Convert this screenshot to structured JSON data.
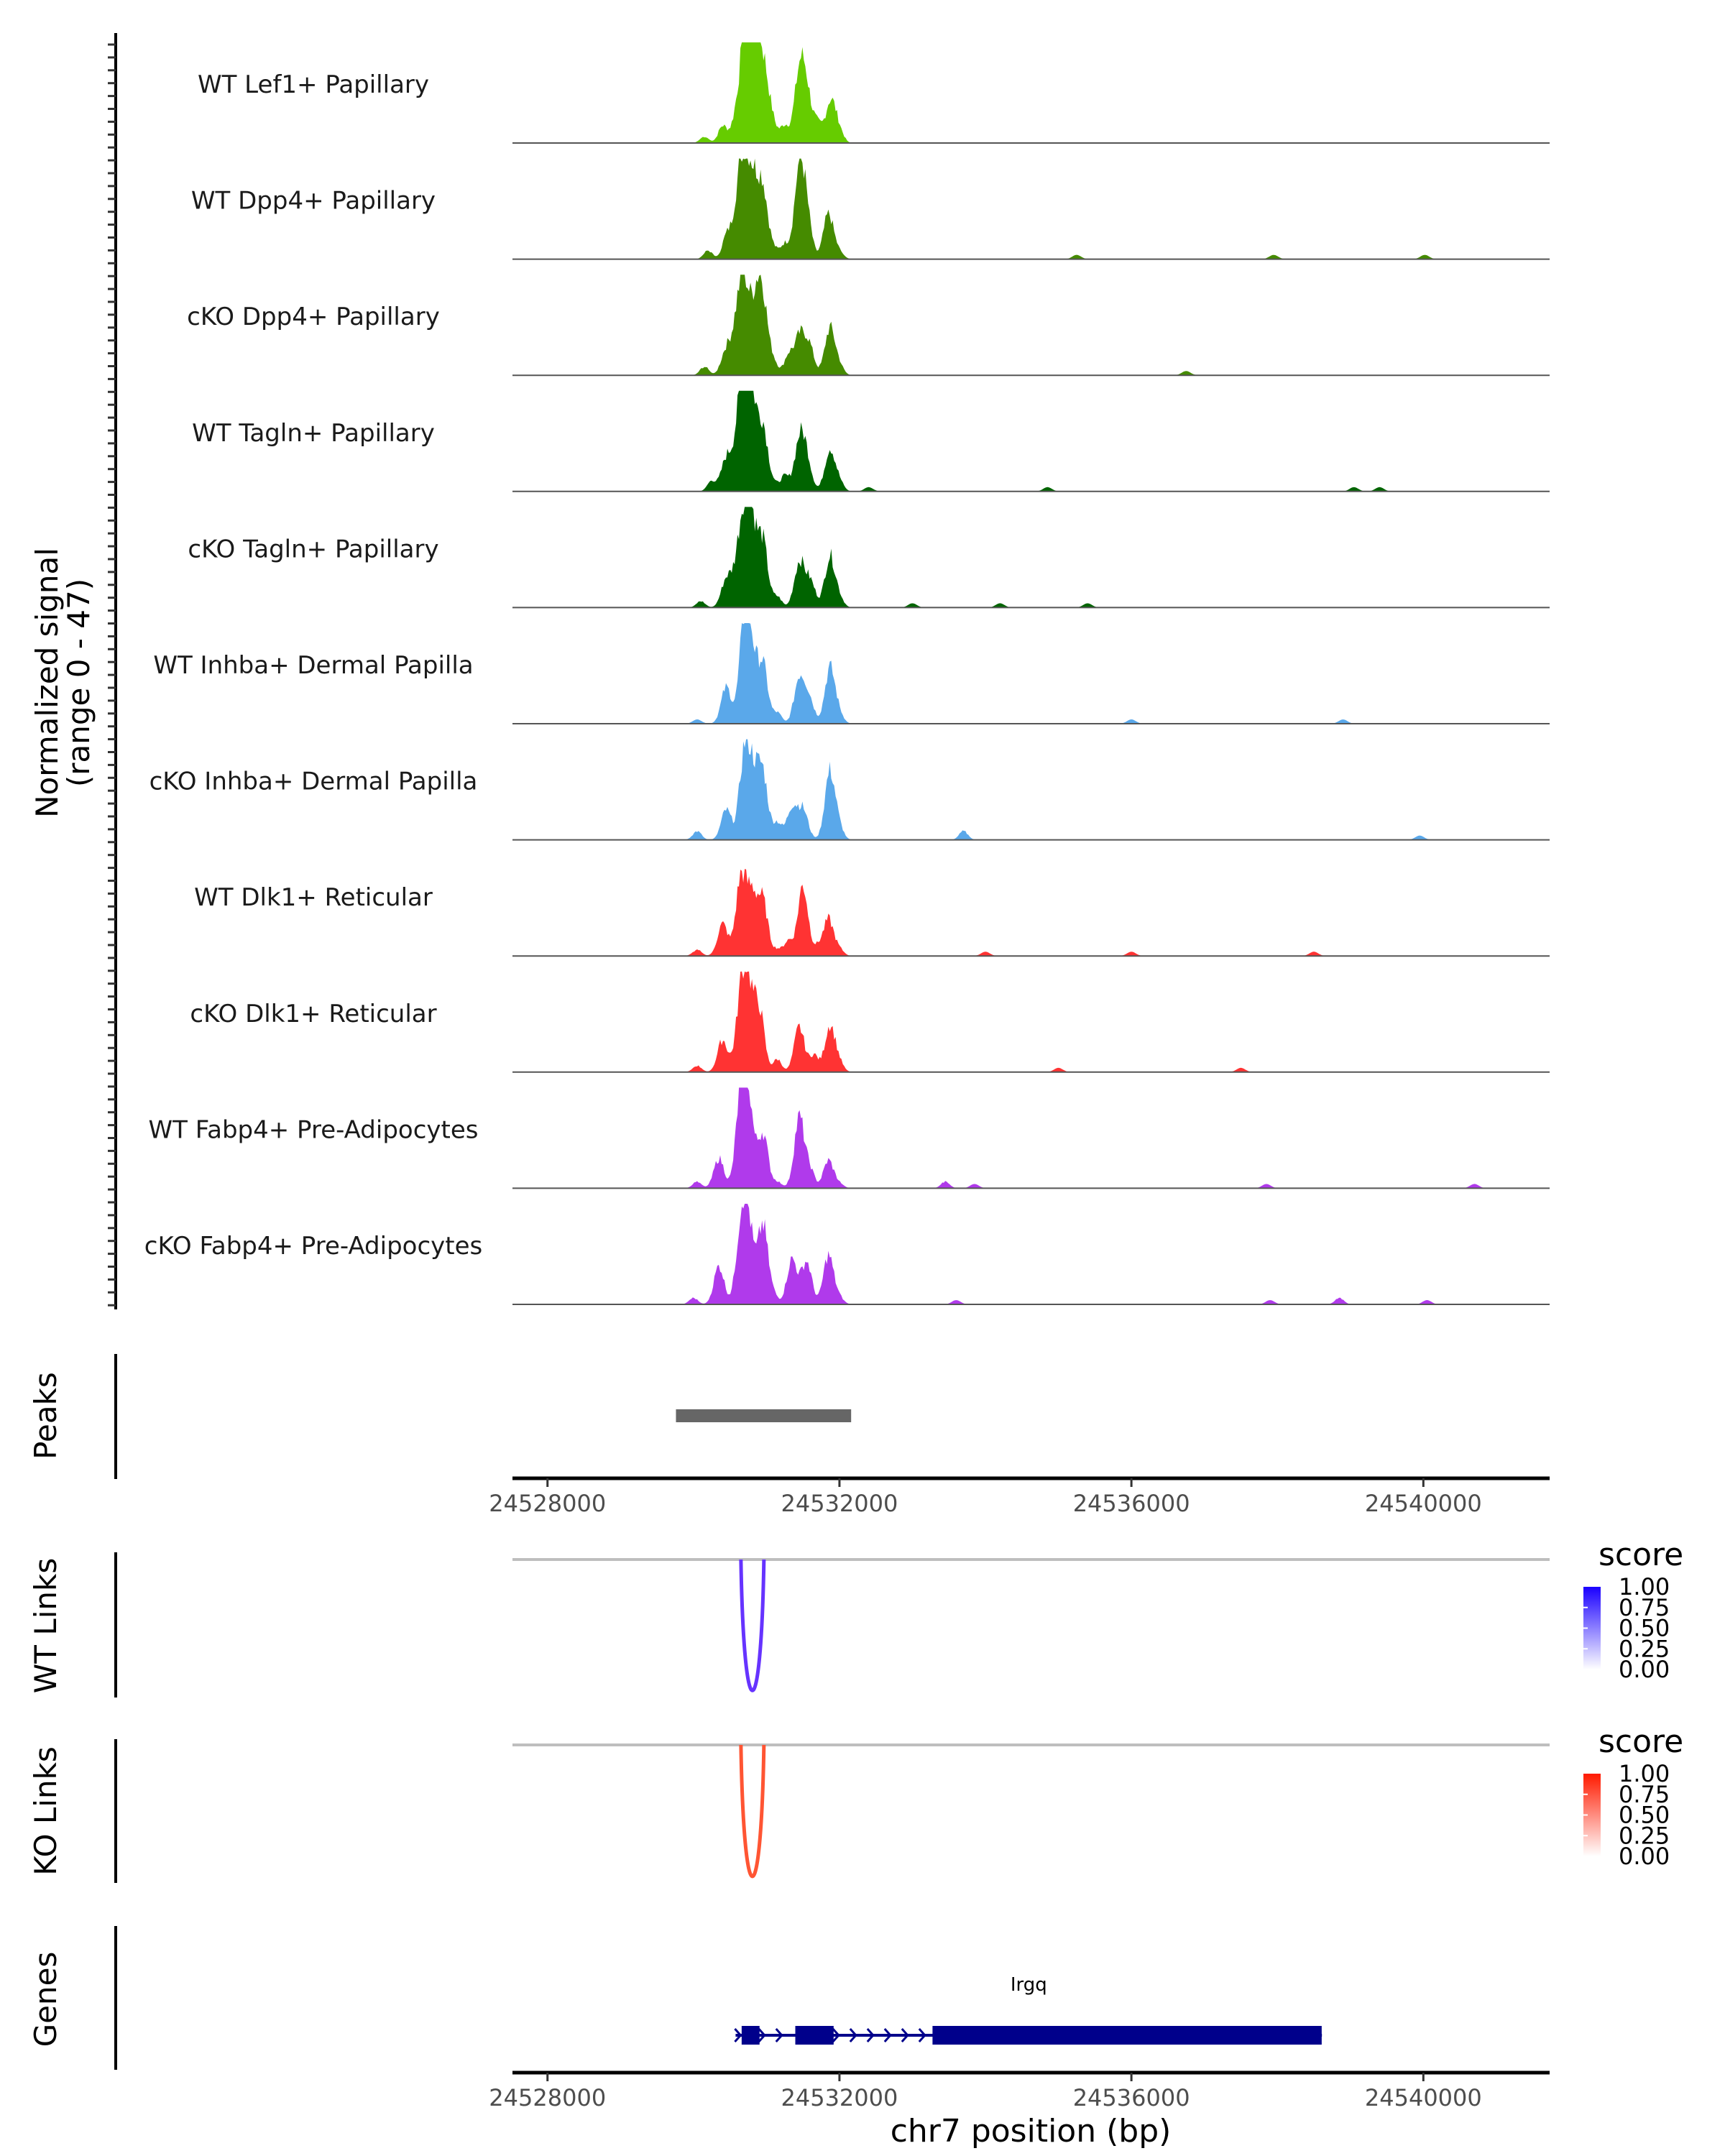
{
  "chart_data": {
    "type": "area",
    "title": "",
    "chromosome": "chr7",
    "xlabel": "chr7 position (bp)",
    "ylabel": "Normalized signal\n(range 0 - 47)",
    "ylabel_lines": [
      "Normalized signal",
      "(range 0 - 47)"
    ],
    "y_range": [
      0,
      47
    ],
    "xlim": [
      24527520,
      24541730
    ],
    "x_ticks": [
      24528000,
      24532000,
      24536000,
      24540000
    ],
    "x_tick_labels": [
      "24528000",
      "24532000",
      "24536000",
      "24540000"
    ],
    "coverage_tracks": [
      {
        "name": "WT Lef1+ Papillary",
        "color": "#66CC00",
        "peaks": [
          [
            24530150,
            3
          ],
          [
            24530400,
            8
          ],
          [
            24530600,
            14
          ],
          [
            24530720,
            44
          ],
          [
            24530800,
            45
          ],
          [
            24530880,
            25
          ],
          [
            24530980,
            27
          ],
          [
            24531100,
            6
          ],
          [
            24531250,
            8
          ],
          [
            24531450,
            30
          ],
          [
            24531550,
            22
          ],
          [
            24531700,
            8
          ],
          [
            24531880,
            20
          ],
          [
            24532000,
            5
          ]
        ]
      },
      {
        "name": "WT Dpp4+ Papillary",
        "color": "#458B00",
        "peaks": [
          [
            24530200,
            4
          ],
          [
            24530450,
            10
          ],
          [
            24530600,
            22
          ],
          [
            24530700,
            39
          ],
          [
            24530820,
            30
          ],
          [
            24530950,
            32
          ],
          [
            24531100,
            4
          ],
          [
            24531250,
            7
          ],
          [
            24531450,
            40
          ],
          [
            24531550,
            18
          ],
          [
            24531850,
            21
          ],
          [
            24532000,
            3
          ],
          [
            24535250,
            2
          ],
          [
            24537950,
            2
          ],
          [
            24540020,
            2
          ]
        ]
      },
      {
        "name": "cKO Dpp4+ Papillary",
        "color": "#458B00",
        "peaks": [
          [
            24530150,
            4
          ],
          [
            24530450,
            12
          ],
          [
            24530600,
            22
          ],
          [
            24530700,
            37
          ],
          [
            24530850,
            28
          ],
          [
            24530950,
            33
          ],
          [
            24531100,
            6
          ],
          [
            24531300,
            9
          ],
          [
            24531450,
            17
          ],
          [
            24531580,
            14
          ],
          [
            24531870,
            22
          ],
          [
            24532000,
            4
          ],
          [
            24536750,
            2
          ]
        ]
      },
      {
        "name": "WT Tagln+ Papillary",
        "color": "#006400",
        "peaks": [
          [
            24530250,
            5
          ],
          [
            24530450,
            15
          ],
          [
            24530600,
            20
          ],
          [
            24530700,
            45
          ],
          [
            24530800,
            35
          ],
          [
            24530950,
            30
          ],
          [
            24531100,
            3
          ],
          [
            24531250,
            7
          ],
          [
            24531450,
            22
          ],
          [
            24531550,
            14
          ],
          [
            24531870,
            20
          ],
          [
            24532000,
            4
          ],
          [
            24532400,
            2
          ],
          [
            24534850,
            2
          ],
          [
            24539050,
            2
          ],
          [
            24539400,
            2
          ]
        ]
      },
      {
        "name": "cKO Tagln+ Papillary",
        "color": "#006400",
        "peaks": [
          [
            24530100,
            3
          ],
          [
            24530450,
            13
          ],
          [
            24530600,
            16
          ],
          [
            24530700,
            36
          ],
          [
            24530800,
            33
          ],
          [
            24530950,
            30
          ],
          [
            24531150,
            5
          ],
          [
            24531450,
            21
          ],
          [
            24531600,
            12
          ],
          [
            24531870,
            24
          ],
          [
            24532000,
            4
          ],
          [
            24533000,
            2
          ],
          [
            24534200,
            2
          ],
          [
            24535400,
            2
          ]
        ]
      },
      {
        "name": "WT Inhba+ Dermal Papilla",
        "color": "#5AA8EA",
        "peaks": [
          [
            24530050,
            2
          ],
          [
            24530450,
            17
          ],
          [
            24530700,
            46
          ],
          [
            24530800,
            25
          ],
          [
            24530950,
            27
          ],
          [
            24531150,
            5
          ],
          [
            24531450,
            21
          ],
          [
            24531580,
            12
          ],
          [
            24531870,
            26
          ],
          [
            24532000,
            4
          ],
          [
            24536000,
            2
          ],
          [
            24538900,
            2
          ]
        ]
      },
      {
        "name": "cKO Inhba+ Dermal Papilla",
        "color": "#5AA8EA",
        "peaks": [
          [
            24530050,
            4
          ],
          [
            24530450,
            14
          ],
          [
            24530700,
            40
          ],
          [
            24530820,
            25
          ],
          [
            24530950,
            30
          ],
          [
            24531150,
            8
          ],
          [
            24531350,
            15
          ],
          [
            24531500,
            14
          ],
          [
            24531870,
            32
          ],
          [
            24532000,
            5
          ],
          [
            24533700,
            4
          ],
          [
            24539950,
            2
          ]
        ]
      },
      {
        "name": "WT Dlk1+ Reticular",
        "color": "#FF3333",
        "peaks": [
          [
            24530050,
            3
          ],
          [
            24530400,
            15
          ],
          [
            24530650,
            36
          ],
          [
            24530800,
            27
          ],
          [
            24530950,
            25
          ],
          [
            24531150,
            3
          ],
          [
            24531300,
            7
          ],
          [
            24531500,
            33
          ],
          [
            24531700,
            4
          ],
          [
            24531850,
            17
          ],
          [
            24532000,
            3
          ],
          [
            24534000,
            2
          ],
          [
            24536000,
            2
          ],
          [
            24538500,
            2
          ]
        ]
      },
      {
        "name": "cKO Dlk1+ Reticular",
        "color": "#FF3333",
        "peaks": [
          [
            24530050,
            3
          ],
          [
            24530400,
            15
          ],
          [
            24530650,
            32
          ],
          [
            24530750,
            35
          ],
          [
            24530900,
            29
          ],
          [
            24531150,
            6
          ],
          [
            24531450,
            21
          ],
          [
            24531650,
            8
          ],
          [
            24531870,
            22
          ],
          [
            24532000,
            4
          ],
          [
            24535000,
            2
          ],
          [
            24537500,
            2
          ]
        ]
      },
      {
        "name": "WT Fabp4+ Pre-Adipocytes",
        "color": "#B03AEB",
        "peaks": [
          [
            24530050,
            3
          ],
          [
            24530350,
            14
          ],
          [
            24530650,
            41
          ],
          [
            24530750,
            38
          ],
          [
            24530950,
            26
          ],
          [
            24531150,
            3
          ],
          [
            24531450,
            33
          ],
          [
            24531600,
            8
          ],
          [
            24531850,
            13
          ],
          [
            24532000,
            2
          ],
          [
            24533450,
            3
          ],
          [
            24533850,
            2
          ],
          [
            24537850,
            2
          ],
          [
            24540700,
            2
          ]
        ]
      },
      {
        "name": "cKO Fabp4+ Pre-Adipocytes",
        "color": "#B03AEB",
        "peaks": [
          [
            24530000,
            3
          ],
          [
            24530350,
            18
          ],
          [
            24530650,
            33
          ],
          [
            24530750,
            35
          ],
          [
            24530950,
            37
          ],
          [
            24531100,
            4
          ],
          [
            24531350,
            21
          ],
          [
            24531550,
            20
          ],
          [
            24531850,
            23
          ],
          [
            24532000,
            3
          ],
          [
            24533600,
            2
          ],
          [
            24537900,
            2
          ],
          [
            24538850,
            3
          ],
          [
            24540050,
            2
          ]
        ]
      }
    ],
    "peaks_track": {
      "label": "Peaks",
      "regions": [
        [
          24529760,
          24532160
        ]
      ],
      "color": "#666666"
    },
    "link_tracks": [
      {
        "label": "WT Links",
        "links": [
          {
            "start": 24530650,
            "end": 24530965,
            "score": 0.8
          }
        ],
        "legend": {
          "title": "score",
          "ticks": [
            "1.00",
            "0.75",
            "0.50",
            "0.25",
            "0.00"
          ],
          "low_color": "#FFFFFF",
          "high_color": "#1A00FF"
        }
      },
      {
        "label": "KO Links",
        "links": [
          {
            "start": 24530650,
            "end": 24530965,
            "score": 0.75
          }
        ],
        "legend": {
          "title": "score",
          "ticks": [
            "1.00",
            "0.75",
            "0.50",
            "0.25",
            "0.00"
          ],
          "low_color": "#FFFFFF",
          "high_color": "#FF1A00"
        }
      }
    ],
    "genes_track": {
      "label": "Genes",
      "genes": [
        {
          "name": "Irgq",
          "strand": "+",
          "start": 24530577,
          "end": 24538610,
          "exons": [
            [
              24530660,
              24530905
            ],
            [
              24531395,
              24531920
            ],
            [
              24533275,
              24538607
            ]
          ],
          "color": "#00008B"
        }
      ]
    }
  }
}
